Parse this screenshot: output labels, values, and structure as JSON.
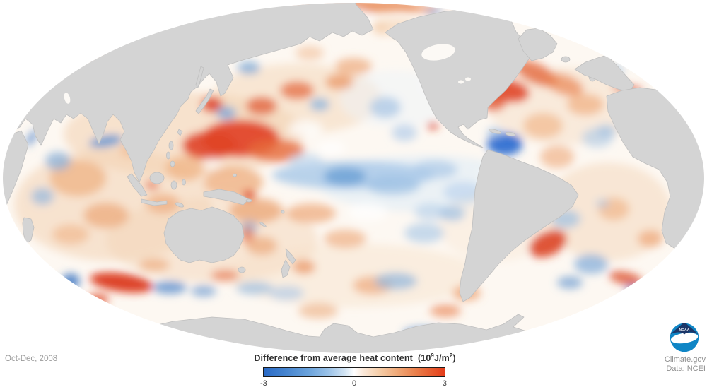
{
  "map": {
    "land_color": "#d4d4d4",
    "land_stroke": "#bfbfbf",
    "ocean_color": "#fdf8f2",
    "lake_color": "#fcf9f5",
    "blobs": [
      [
        260,
        190,
        170,
        60,
        "#f2cfae",
        0.55
      ],
      [
        420,
        140,
        120,
        50,
        "#f4d5b6",
        0.5
      ],
      [
        160,
        290,
        140,
        80,
        "#f3d2b2",
        0.55
      ],
      [
        300,
        340,
        150,
        60,
        "#f4d6b8",
        0.5
      ],
      [
        500,
        390,
        180,
        45,
        "#f6dfc8",
        0.45
      ],
      [
        800,
        150,
        110,
        55,
        "#f5d9be",
        0.45
      ],
      [
        860,
        300,
        90,
        70,
        "#f4d5b8",
        0.5
      ],
      [
        600,
        260,
        150,
        40,
        "#dfecf7",
        0.6
      ],
      [
        560,
        140,
        80,
        40,
        "#eef4fa",
        0.5
      ],
      [
        700,
        320,
        80,
        50,
        "#f7e3d0",
        0.4
      ],
      [
        340,
        196,
        55,
        26,
        "#e1462a",
        0.95
      ],
      [
        296,
        206,
        38,
        20,
        "#e04428",
        0.9
      ],
      [
        390,
        213,
        40,
        16,
        "#e66a3c",
        0.8
      ],
      [
        300,
        148,
        15,
        11,
        "#df452a",
        0.9
      ],
      [
        320,
        160,
        14,
        9,
        "#7fa9d8",
        0.85
      ],
      [
        370,
        150,
        22,
        13,
        "#e25c34",
        0.75
      ],
      [
        420,
        128,
        24,
        13,
        "#e46236",
        0.7
      ],
      [
        452,
        148,
        14,
        9,
        "#90b6dd",
        0.8
      ],
      [
        352,
        96,
        16,
        9,
        "#79a7d6",
        0.75
      ],
      [
        480,
        116,
        20,
        11,
        "#ea8a55",
        0.65
      ],
      [
        545,
        152,
        22,
        15,
        "#a9c7e6",
        0.75
      ],
      [
        572,
        188,
        18,
        12,
        "#b3cde9",
        0.7
      ],
      [
        500,
        94,
        26,
        12,
        "#eb9c68",
        0.6
      ],
      [
        438,
        75,
        20,
        10,
        "#f0b88e",
        0.55
      ],
      [
        500,
        248,
        115,
        20,
        "#a8c8e8",
        0.8
      ],
      [
        488,
        250,
        30,
        13,
        "#6fa2d6",
        0.85
      ],
      [
        556,
        262,
        38,
        14,
        "#9fc1e4",
        0.75
      ],
      [
        615,
        240,
        32,
        13,
        "#abc9e8",
        0.7
      ],
      [
        655,
        272,
        28,
        15,
        "#b9d2ec",
        0.65
      ],
      [
        432,
        228,
        24,
        11,
        "#bdd5ee",
        0.65
      ],
      [
        330,
        258,
        42,
        22,
        "#eca673",
        0.7
      ],
      [
        362,
        298,
        38,
        18,
        "#eb9d68",
        0.65
      ],
      [
        352,
        276,
        9,
        6,
        "#dc3a22",
        0.95
      ],
      [
        262,
        238,
        28,
        18,
        "#efae7d",
        0.65
      ],
      [
        230,
        288,
        24,
        14,
        "#eda26f",
        0.6
      ],
      [
        215,
        262,
        10,
        6,
        "#e05834",
        0.7
      ],
      [
        440,
        302,
        35,
        14,
        "#eb9a64",
        0.6
      ],
      [
        488,
        338,
        30,
        13,
        "#eca470",
        0.6
      ],
      [
        527,
        404,
        28,
        13,
        "#ec9e6a",
        0.6
      ],
      [
        600,
        330,
        28,
        14,
        "#a9c7e7",
        0.65
      ],
      [
        560,
        398,
        30,
        12,
        "#8fb5dc",
        0.7
      ],
      [
        610,
        300,
        24,
        12,
        "#b3cde9",
        0.6
      ],
      [
        450,
        440,
        28,
        11,
        "#eba673",
        0.55
      ],
      [
        405,
        415,
        25,
        10,
        "#a9c7e7",
        0.6
      ],
      [
        630,
        440,
        22,
        9,
        "#e8763f",
        0.6
      ],
      [
        600,
        472,
        30,
        8,
        "#4b81c8",
        0.8
      ],
      [
        660,
        415,
        20,
        11,
        "#eb9560",
        0.65
      ],
      [
        110,
        252,
        40,
        26,
        "#eda671",
        0.6
      ],
      [
        82,
        228,
        18,
        13,
        "#8ab0da",
        0.75
      ],
      [
        60,
        278,
        16,
        12,
        "#93b8de",
        0.7
      ],
      [
        150,
        200,
        24,
        8,
        "#5b93d2",
        0.85,
        -10
      ],
      [
        150,
        305,
        32,
        18,
        "#eb9d68",
        0.6
      ],
      [
        100,
        332,
        26,
        14,
        "#f0b286",
        0.6
      ],
      [
        185,
        212,
        16,
        10,
        "#f0b488",
        0.6
      ],
      [
        45,
        195,
        14,
        4,
        "#4a80c8",
        0.9,
        -55
      ],
      [
        172,
        400,
        45,
        13,
        "#db3a20",
        0.95,
        8
      ],
      [
        138,
        424,
        16,
        8,
        "#e04c2a",
        0.8
      ],
      [
        100,
        398,
        13,
        11,
        "#4078c4",
        0.85
      ],
      [
        240,
        407,
        24,
        9,
        "#5e90ce",
        0.8
      ],
      [
        288,
        412,
        18,
        8,
        "#6f9cd2",
        0.7
      ],
      [
        318,
        390,
        20,
        8,
        "#e4673c",
        0.6
      ],
      [
        360,
        408,
        26,
        9,
        "#9abde0",
        0.7
      ],
      [
        218,
        375,
        22,
        9,
        "#eb9c67",
        0.55
      ],
      [
        370,
        348,
        22,
        13,
        "#eca572",
        0.65
      ],
      [
        352,
        322,
        13,
        9,
        "#8fb4dc",
        0.7
      ],
      [
        350,
        332,
        10,
        12,
        "#e2603a",
        0.6
      ],
      [
        430,
        378,
        16,
        10,
        "#e88850",
        0.65
      ],
      [
        714,
        204,
        25,
        16,
        "#2f6fd2",
        0.95
      ],
      [
        700,
        188,
        11,
        7,
        "#a2c2e5",
        0.8
      ],
      [
        716,
        128,
        33,
        16,
        "#e0462a",
        0.9,
        10
      ],
      [
        698,
        146,
        17,
        11,
        "#e25834",
        0.8
      ],
      [
        758,
        104,
        33,
        14,
        "#e4683c",
        0.8,
        25
      ],
      [
        798,
        120,
        28,
        14,
        "#ea8652",
        0.7,
        20
      ],
      [
        828,
        148,
        26,
        15,
        "#efa571",
        0.6
      ],
      [
        718,
        76,
        16,
        8,
        "#5d90d0",
        0.85
      ],
      [
        610,
        56,
        20,
        6,
        "#e2663c",
        0.7,
        5
      ],
      [
        613,
        16,
        12,
        5,
        "#6f9cd2",
        0.8
      ],
      [
        590,
        12,
        28,
        5,
        "#e8824e",
        0.7
      ],
      [
        648,
        56,
        10,
        7,
        "#dc4226",
        0.85
      ],
      [
        768,
        178,
        28,
        18,
        "#f0ab79",
        0.55
      ],
      [
        788,
        222,
        24,
        16,
        "#eda06c",
        0.55
      ],
      [
        845,
        195,
        22,
        14,
        "#abc9e8",
        0.6
      ],
      [
        858,
        185,
        14,
        9,
        "#9cc0e4",
        0.6
      ],
      [
        888,
        126,
        22,
        5,
        "#dd4a28",
        0.85,
        8
      ],
      [
        872,
        100,
        10,
        6,
        "#90b6dd",
        0.7
      ],
      [
        775,
        345,
        28,
        17,
        "#dc4426",
        0.9,
        -25
      ],
      [
        745,
        312,
        18,
        11,
        "#e2603a",
        0.7
      ],
      [
        800,
        310,
        21,
        13,
        "#9cbfe2",
        0.7
      ],
      [
        836,
        374,
        24,
        14,
        "#87afdb",
        0.75
      ],
      [
        806,
        400,
        18,
        9,
        "#6f9ed2",
        0.7
      ],
      [
        885,
        394,
        24,
        9,
        "#dc4f2c",
        0.8,
        12
      ],
      [
        898,
        410,
        14,
        5,
        "#4a80c6",
        0.8,
        12
      ],
      [
        868,
        296,
        22,
        16,
        "#efaa76",
        0.55
      ],
      [
        920,
        338,
        18,
        12,
        "#eb9a66",
        0.6
      ],
      [
        852,
        288,
        10,
        6,
        "#a9c7e7",
        0.6
      ],
      [
        500,
        8,
        95,
        10,
        "#e8854f",
        0.85
      ],
      [
        470,
        26,
        55,
        16,
        "#ffffff",
        0.9
      ],
      [
        560,
        38,
        35,
        12,
        "#f3c9a4",
        0.5
      ],
      [
        130,
        80,
        25,
        10,
        "#efa471",
        0.55
      ],
      [
        60,
        120,
        14,
        9,
        "#abc9e8",
        0.6
      ],
      [
        648,
        30,
        22,
        7,
        "#e8763f",
        0.6,
        10
      ],
      [
        432,
        182,
        24,
        11,
        "#ffffff",
        0.75
      ],
      [
        468,
        210,
        20,
        10,
        "#ffffff",
        0.7
      ],
      [
        520,
        300,
        28,
        13,
        "#ffffff",
        0.7
      ],
      [
        700,
        250,
        22,
        11,
        "#ffffff",
        0.6
      ],
      [
        618,
        120,
        20,
        10,
        "#ffffff",
        0.7
      ],
      [
        300,
        232,
        14,
        8,
        "#ffffff",
        0.6
      ],
      [
        538,
        40,
        10,
        10,
        "#f3c9a4",
        0.5
      ],
      [
        612,
        178,
        8,
        5,
        "#dc4226",
        0.9
      ],
      [
        640,
        302,
        18,
        11,
        "#9cbfe2",
        0.7
      ]
    ]
  },
  "legend": {
    "title": "Difference from average heat content",
    "unit_open": "(10",
    "unit_exp": "9",
    "unit_mid": "J/m",
    "unit_exp2": "2",
    "unit_close": ")",
    "tick_min": "-3",
    "tick_mid": "0",
    "tick_max": "3",
    "gradient": [
      "0% #2a6ac6",
      "12% #4584cf",
      "25% #6ba3dc",
      "36% #9cc3e8",
      "45% #d4e5f4",
      "50% #ffffff",
      "55% #fbe9da",
      "64% #f5cda8",
      "74% #efa877",
      "84% #ea7f4b",
      "93% #e65a2e",
      "100% #e43c1a"
    ]
  },
  "footer": {
    "date_label": "Oct-Dec, 2008",
    "credit_site": "Climate.gov",
    "credit_data": "Data: NCEI"
  },
  "logo": {
    "text": "NOAA",
    "navy": "#1b3668",
    "blue": "#0f85c5"
  }
}
